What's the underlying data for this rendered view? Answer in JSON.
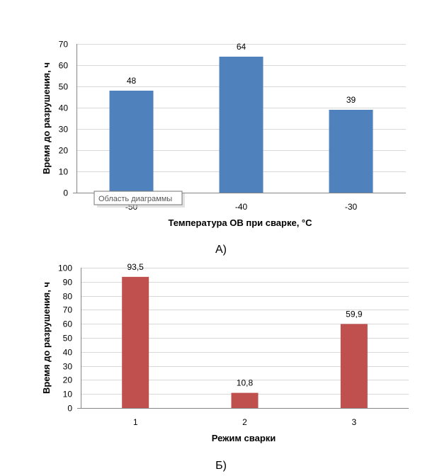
{
  "chart_data": [
    {
      "type": "bar",
      "categories": [
        "-50",
        "-40",
        "-30"
      ],
      "values": [
        48,
        64,
        39
      ],
      "value_labels": [
        "48",
        "64",
        "39"
      ],
      "xlabel": "Температура ОВ при сварке, °С",
      "ylabel": "Время до разрушения, ч",
      "ylim": [
        0,
        70
      ],
      "yticks": [
        "0",
        "10",
        "20",
        "30",
        "40",
        "50",
        "60",
        "70"
      ],
      "ytick_step": 10,
      "grid": true,
      "legend": "none",
      "bar_color": "#4f81bd",
      "caption": "А)",
      "tooltip": "Область диаграммы"
    },
    {
      "type": "bar",
      "categories": [
        "1",
        "2",
        "3"
      ],
      "values": [
        93.5,
        10.8,
        59.9
      ],
      "value_labels": [
        "93,5",
        "10,8",
        "59,9"
      ],
      "xlabel": "Режим сварки",
      "ylabel": "Время до разрушения, ч",
      "ylim": [
        0,
        100
      ],
      "yticks": [
        "0",
        "10",
        "20",
        "30",
        "40",
        "50",
        "60",
        "70",
        "80",
        "90",
        "100"
      ],
      "ytick_step": 10,
      "grid": true,
      "legend": "none",
      "bar_color": "#c0504d",
      "caption": "Б)"
    }
  ]
}
